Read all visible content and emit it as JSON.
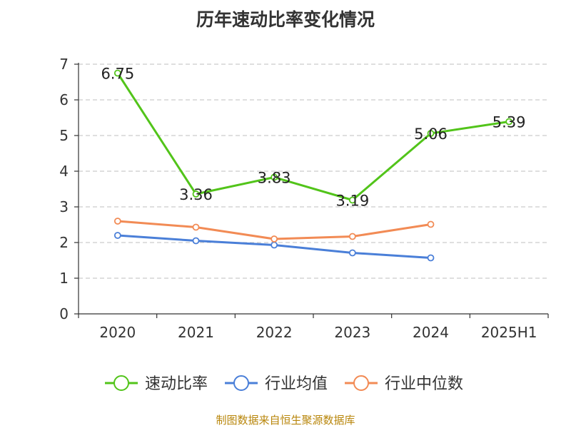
{
  "title": "历年速动比率变化情况",
  "source": "制图数据来自恒生聚源数据库",
  "chart_data": {
    "type": "line",
    "categories": [
      "2020",
      "2021",
      "2022",
      "2023",
      "2024",
      "2025H1"
    ],
    "ylim": [
      0,
      7
    ],
    "yticks": [
      0,
      1,
      2,
      3,
      4,
      5,
      6,
      7
    ],
    "grid": true,
    "legend_position": "bottom",
    "series": [
      {
        "name": "速动比率",
        "color": "#52c41a",
        "values": [
          6.75,
          3.36,
          3.83,
          3.19,
          5.06,
          5.39
        ],
        "labels": true
      },
      {
        "name": "行业均值",
        "color": "#4a7fd8",
        "values": [
          2.2,
          2.05,
          1.93,
          1.71,
          1.57,
          null
        ],
        "labels": false
      },
      {
        "name": "行业中位数",
        "color": "#f28b55",
        "values": [
          2.6,
          2.43,
          2.1,
          2.17,
          2.51,
          null
        ],
        "labels": false
      }
    ]
  }
}
